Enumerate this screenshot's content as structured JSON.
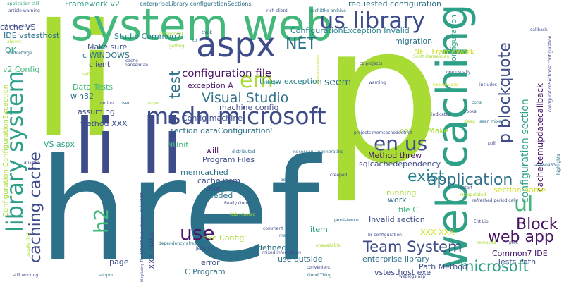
{
  "colors": {
    "background": "#ffffff",
    "palette": [
      "#2d7089",
      "#a8db34",
      "#42b97b",
      "#2ea087",
      "#3e4c8a",
      "#471466",
      "#cde11d",
      "#27808e",
      "#3d4e8a"
    ]
  },
  "words": [
    {
      "text": "href",
      "color": "#2d7089"
    },
    {
      "text": "p",
      "color": "#a8db34"
    },
    {
      "text": "li",
      "color": "#a8db34"
    },
    {
      "text": "system web",
      "color": "#42b97b"
    },
    {
      "text": "aspx",
      "color": "#3e4c8a"
    },
    {
      "text": "li li",
      "color": "#3e4c8a"
    },
    {
      "text": "web caching",
      "color": "#2ea087"
    },
    {
      "text": "library system",
      "color": "#2ea087"
    },
    {
      "text": "us library",
      "color": "#3e4c8a"
    },
    {
      "text": "msdn microsoft",
      "color": "#3e4c8a"
    },
    {
      "text": "em",
      "color": "#a8db34"
    },
    {
      "text": "NET",
      "color": "#2d7089"
    },
    {
      "text": "en us",
      "color": "#3e4c8a"
    },
    {
      "text": "p blockquote",
      "color": "#3e4c8a"
    },
    {
      "text": "caching cache",
      "color": "#3e4c8a"
    },
    {
      "text": "test",
      "color": "#2d7089"
    },
    {
      "text": "application",
      "color": "#2d7089"
    },
    {
      "text": "exist",
      "color": "#27808e"
    },
    {
      "text": "ul",
      "color": "#42b97b"
    },
    {
      "text": "use",
      "color": "#471466"
    },
    {
      "text": "h2",
      "color": "#42b97b"
    },
    {
      "text": "Block",
      "color": "#471466"
    },
    {
      "text": "web app",
      "color": "#471466"
    },
    {
      "text": "microsoft",
      "color": "#2ea087"
    },
    {
      "text": "Team System",
      "color": "#3e4c8a"
    },
    {
      "text": "Visual Studio",
      "color": "#2d7089"
    },
    {
      "text": "configuration file",
      "color": "#471466"
    },
    {
      "text": "configuration section",
      "color": "#2ea087"
    },
    {
      "text": "seem",
      "color": "#2d7089"
    },
    {
      "text": "Framework v2",
      "color": "#2ea087"
    },
    {
      "text": "requested configuration",
      "color": "#2d7089"
    },
    {
      "text": "cacheitemupdatecallback",
      "color": "#471466"
    },
    {
      "text": "configuration",
      "color": "#2ea087"
    },
    {
      "text": "ConfigurationException Invalid",
      "color": "#27808e"
    },
    {
      "text": "migration",
      "color": "#2d7089"
    },
    {
      "text": "NET Framework",
      "color": "#cde11d"
    },
    {
      "text": "Make sure",
      "color": "#3e4c8a"
    },
    {
      "text": "Studio Common7",
      "color": "#27808e"
    },
    {
      "text": "c WINDOWS",
      "color": "#2d7089"
    },
    {
      "text": "client",
      "color": "#3e4c8a"
    },
    {
      "text": "threw exception",
      "color": "#27808e"
    },
    {
      "text": "exception Á",
      "color": "#471466"
    },
    {
      "text": "machine config",
      "color": "#3e4c8a"
    },
    {
      "text": "Data Tests",
      "color": "#42b97b"
    },
    {
      "text": "win32",
      "color": "#2d7089"
    },
    {
      "text": "assuming",
      "color": "#3e4c8a"
    },
    {
      "text": "method XXX",
      "color": "#3d4e8a"
    },
    {
      "text": "section dataConfiguration'",
      "color": "#2d7089"
    },
    {
      "text": "Config machine",
      "color": "#3d4e8a"
    },
    {
      "text": "config' Make",
      "color": "#a8db34"
    },
    {
      "text": "VS aspx",
      "color": "#2ea087"
    },
    {
      "text": "NUnit",
      "color": "#42b97b"
    },
    {
      "text": "will",
      "color": "#471466"
    },
    {
      "text": "Program Files",
      "color": "#3e4c8a"
    },
    {
      "text": "memcached",
      "color": "#2d7089"
    },
    {
      "text": "cache item",
      "color": "#3e4c8a"
    },
    {
      "text": "one",
      "color": "#3e4c8a"
    },
    {
      "text": "needed",
      "color": "#2d7089"
    },
    {
      "text": "Method threw",
      "color": "#471466"
    },
    {
      "text": "sqlcachedependency",
      "color": "#3e4c8a"
    },
    {
      "text": "running",
      "color": "#a8db34"
    },
    {
      "text": "work",
      "color": "#2d7089"
    },
    {
      "text": "file C",
      "color": "#42b97b"
    },
    {
      "text": "section name",
      "color": "#cde11d"
    },
    {
      "text": "Invalid section",
      "color": "#3e4c8a"
    },
    {
      "text": "item",
      "color": "#2ea087"
    },
    {
      "text": "XXX XXX",
      "color": "#cde11d"
    },
    {
      "text": "exe Config'",
      "color": "#a8db34"
    },
    {
      "text": "XXX Data",
      "color": "#3e4c8a"
    },
    {
      "text": "page",
      "color": "#3e4c8a"
    },
    {
      "text": "error",
      "color": "#3e4c8a"
    },
    {
      "text": "C Program",
      "color": "#2d7089"
    },
    {
      "text": "defined",
      "color": "#2d7089"
    },
    {
      "text": "use outside",
      "color": "#2d7089"
    },
    {
      "text": "enterprise library",
      "color": "#2d7089"
    },
    {
      "text": "vstesthost exe",
      "color": "#3e4c8a"
    },
    {
      "text": "Path Method",
      "color": "#3e4c8a"
    },
    {
      "text": "Common7 IDE",
      "color": "#471466"
    },
    {
      "text": "Tests Path",
      "color": "#3e4c8a"
    },
    {
      "text": "cache VS",
      "color": "#3e4c8a"
    },
    {
      "text": "IDE vstesthost",
      "color": "#2d7089"
    },
    {
      "text": "OK",
      "color": "#2ea087"
    },
    {
      "text": "v2 Config",
      "color": "#42b97b"
    },
    {
      "text": "Configuration ConfigurationException",
      "color": "#a8db34"
    },
    {
      "text": "enterpriseLibrary configurationSections'",
      "color": "#2d7089"
    },
    {
      "text": "application still",
      "color": "#2ea087"
    },
    {
      "text": "article warning",
      "color": "#3e4c8a"
    },
    {
      "text": "blockquote ol",
      "color": "#3e4c8a"
    },
    {
      "text": "always",
      "color": "#a8db34"
    },
    {
      "text": "sourceforge",
      "color": "#2d7089"
    },
    {
      "text": "rich client",
      "color": "#3e4c8a"
    },
    {
      "text": "cschittko archive",
      "color": "#2d7089"
    },
    {
      "text": "component",
      "color": "#a8db34"
    },
    {
      "text": "think",
      "color": "#3e4c8a"
    },
    {
      "text": "kb",
      "color": "#2d7089"
    },
    {
      "text": "getting",
      "color": "#a8db34"
    },
    {
      "text": "cache",
      "color": "#3e4c8a"
    },
    {
      "text": "hanselman",
      "color": "#3e4c8a"
    },
    {
      "text": "safe",
      "color": "#a8db34"
    },
    {
      "text": "notion",
      "color": "#3e4c8a"
    },
    {
      "text": "used",
      "color": "#2d7089"
    },
    {
      "text": "expect",
      "color": "#a8db34"
    },
    {
      "text": "really",
      "color": "#2ea087"
    },
    {
      "text": "cz projects",
      "color": "#3e4c8a"
    },
    {
      "text": "Scott Hanselman",
      "color": "#a8db34"
    },
    {
      "text": "one usually",
      "color": "#3e4c8a"
    },
    {
      "text": "warning",
      "color": "#3e4c8a"
    },
    {
      "text": "includes",
      "color": "#3e4c8a"
    },
    {
      "text": "two obvious",
      "color": "#cde11d"
    },
    {
      "text": "need",
      "color": "#a8db34"
    },
    {
      "text": "cons",
      "color": "#2d7089"
    },
    {
      "text": "indicates",
      "color": "#3e4c8a"
    },
    {
      "text": "looks",
      "color": "#3e4c8a"
    },
    {
      "text": "sleep",
      "color": "#a8db34"
    },
    {
      "text": "seen mixed",
      "color": "#2d7089"
    },
    {
      "text": "projects memcacheddotnet",
      "color": "#3e4c8a"
    },
    {
      "text": "poll",
      "color": "#3e4c8a"
    },
    {
      "text": "already",
      "color": "#a8db34"
    },
    {
      "text": "distributed",
      "color": "#2d7089"
    },
    {
      "text": "necessary regenerating",
      "color": "#2d7089"
    },
    {
      "text": "answer",
      "color": "#3e4c8a"
    },
    {
      "text": "non",
      "color": "#3e4c8a"
    },
    {
      "text": "creeped",
      "color": "#3e4c8a"
    },
    {
      "text": "addition",
      "color": "#2d7089"
    },
    {
      "text": "restart",
      "color": "#3e4c8a"
    },
    {
      "text": "repopulated",
      "color": "#a8db34"
    },
    {
      "text": "refreshed periodically",
      "color": "#3e4c8a"
    },
    {
      "text": "Really Good",
      "color": "#3e4c8a"
    },
    {
      "text": "Rob Howard",
      "color": "#a8db34"
    },
    {
      "text": "persistence",
      "color": "#2d7089"
    },
    {
      "text": "br configuration",
      "color": "#3e4c8a"
    },
    {
      "text": "comment",
      "color": "#3e4c8a"
    },
    {
      "text": "maybe",
      "color": "#2d7089"
    },
    {
      "text": "Ent Lib",
      "color": "#3e4c8a"
    },
    {
      "text": "removed",
      "color": "#a8db34"
    },
    {
      "text": "pros",
      "color": "#3e4c8a"
    },
    {
      "text": "dependency already",
      "color": "#2d7089"
    },
    {
      "text": "jehiah cz",
      "color": "#3e4c8a"
    },
    {
      "text": "mixed information",
      "color": "#3e4c8a"
    },
    {
      "text": "unavailable",
      "color": "#a8db34"
    },
    {
      "text": "convenient",
      "color": "#3e4c8a"
    },
    {
      "text": "Good Thing",
      "color": "#2d7089"
    },
    {
      "text": "weblogs asp",
      "color": "#3e4c8a"
    },
    {
      "text": "support",
      "color": "#2d7089"
    },
    {
      "text": "still working",
      "color": "#3e4c8a"
    },
    {
      "text": "usually find",
      "color": "#a8db34"
    },
    {
      "text": "blog Using The ASP.NET Cache Outside Of ASP.NET",
      "color": "#3e4c8a"
    },
    {
      "text": "configurationSections' configuration",
      "color": "#3e4c8a"
    },
    {
      "text": "callback",
      "color": "#3e4c8a"
    },
    {
      "text": "highlights",
      "color": "#2d7089"
    },
    {
      "text": "aa480453",
      "color": "#2d7089"
    },
    {
      "text": "obvious solutions",
      "color": "#cde11d"
    }
  ]
}
